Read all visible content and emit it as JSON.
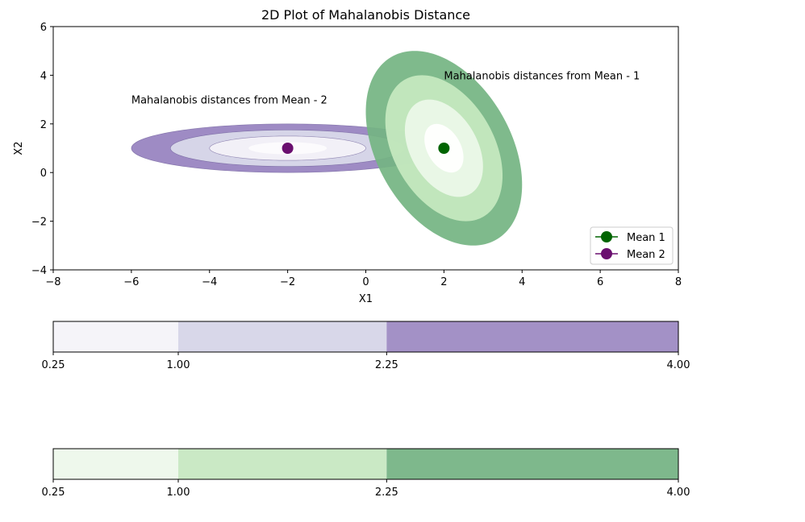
{
  "chart_data": [
    {
      "type": "contour",
      "title": "2D Plot of Mahalanobis Distance",
      "xlabel": "X1",
      "ylabel": "X2",
      "xlim": [
        -8,
        8
      ],
      "ylim": [
        -4,
        6
      ],
      "xticks": [
        -8,
        -6,
        -4,
        -2,
        0,
        2,
        4,
        6,
        8
      ],
      "yticks": [
        -4,
        -2,
        0,
        2,
        4,
        6
      ],
      "grid": false,
      "legend_position": "lower-right",
      "contour_levels": [
        0.25,
        1.0,
        2.25,
        4.0
      ],
      "series": [
        {
          "name": "Mean 1",
          "mean": [
            2,
            1
          ],
          "covariance": [
            [
              1,
              -0.75
            ],
            [
              -0.75,
              4
            ]
          ],
          "marker_color": "#006400",
          "fill_colors": [
            "#ffffff",
            "#edf8e9",
            "#c7e9c0",
            "#74b482"
          ],
          "annotation": "Mahalanobis distances from Mean - 1",
          "annotation_at": [
            2,
            4
          ]
        },
        {
          "name": "Mean 2",
          "mean": [
            -2,
            1
          ],
          "covariance": [
            [
              4,
              0
            ],
            [
              0,
              0.25
            ]
          ],
          "marker_color": "#6a0f6f",
          "fill_colors": [
            "#fcfbfd",
            "#f2f0f7",
            "#d6d5e8",
            "#9e8bc4"
          ],
          "annotation": "Mahalanobis distances from Mean - 2",
          "annotation_at": [
            -6,
            3
          ]
        }
      ]
    },
    {
      "type": "colorbar",
      "ticks": [
        "0.25",
        "1.00",
        "2.25",
        "4.00"
      ],
      "colors": [
        "#f5f4f9",
        "#d8d7e9",
        "#a391c6"
      ]
    },
    {
      "type": "colorbar",
      "ticks": [
        "0.25",
        "1.00",
        "2.25",
        "4.00"
      ],
      "colors": [
        "#eef8ec",
        "#cae9c5",
        "#7eb88c"
      ]
    }
  ]
}
